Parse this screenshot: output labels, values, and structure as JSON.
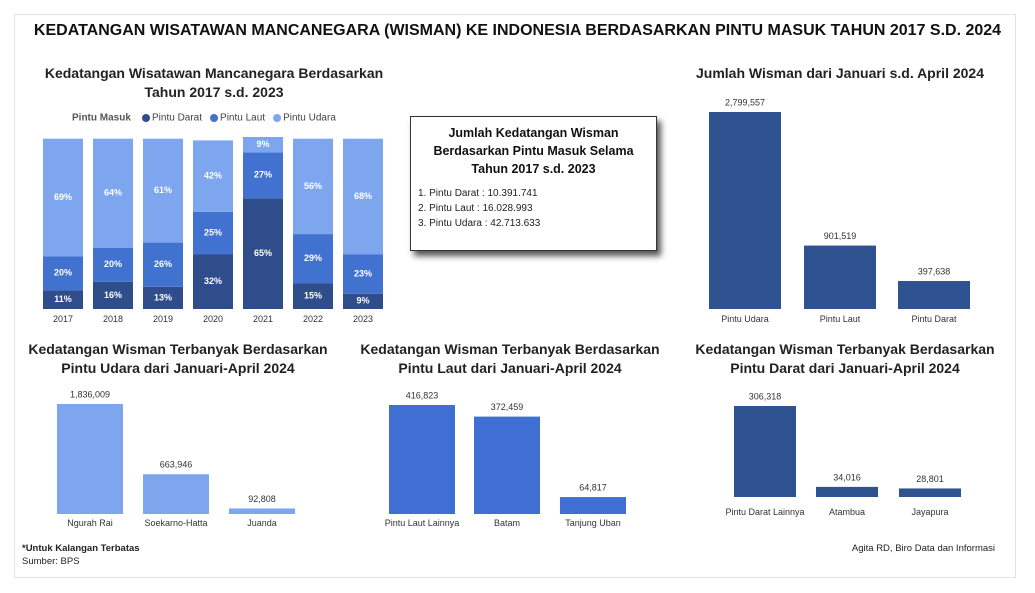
{
  "header": {
    "title": "KEDATANGAN WISATAWAN MANCANEGARA (WISMAN) KE INDONESIA BERDASARKAN PINTU MASUK TAHUN 2017 S.D. 2024"
  },
  "chart_data": [
    {
      "type": "bar",
      "stacked": true,
      "title": "Kedatangan Wisatawan Mancanegara Berdasarkan Tahun 2017 s.d. 2023",
      "legend_title": "Pintu Masuk",
      "categories": [
        "2017",
        "2018",
        "2019",
        "2020",
        "2021",
        "2022",
        "2023"
      ],
      "series": [
        {
          "name": "Pintu Darat",
          "color": "#2f4d8a",
          "values": [
            11,
            16,
            13,
            32,
            65,
            15,
            9
          ],
          "value_labels": [
            "11%",
            "16%",
            "13%",
            "32%",
            "65%",
            "15%",
            "9%"
          ]
        },
        {
          "name": "Pintu Laut",
          "color": "#4272cf",
          "values": [
            20,
            20,
            26,
            25,
            27,
            29,
            23
          ],
          "value_labels": [
            "20%",
            "20%",
            "26%",
            "25%",
            "27%",
            "29%",
            "23%"
          ]
        },
        {
          "name": "Pintu Udara",
          "color": "#7ea6ef",
          "values": [
            69,
            64,
            61,
            42,
            9,
            56,
            68
          ],
          "value_labels": [
            "69%",
            "64%",
            "61%",
            "42%",
            "9%",
            "56%",
            "68%"
          ]
        }
      ]
    },
    {
      "type": "bar",
      "title": "Jumlah Wisman dari Januari s.d. April 2024",
      "color": "#2f5290",
      "categories": [
        "Pintu Udara",
        "Pintu Laut",
        "Pintu Darat"
      ],
      "values": [
        2799557,
        901519,
        397638
      ],
      "value_labels": [
        "2,799,557",
        "901,519",
        "397,638"
      ]
    },
    {
      "type": "bar",
      "title": "Kedatangan Wisman Terbanyak Berdasarkan Pintu Udara dari Januari-April 2024",
      "color": "#7ea6ef",
      "categories": [
        "Ngurah Rai",
        "Soekarno-Hatta",
        "Juanda"
      ],
      "values": [
        1836009,
        663946,
        92808
      ],
      "value_labels": [
        "1,836,009",
        "663,946",
        "92,808"
      ]
    },
    {
      "type": "bar",
      "title": "Kedatangan Wisman Terbanyak Berdasarkan Pintu Laut dari Januari-April 2024",
      "color": "#3f6fd3",
      "categories": [
        "Pintu Laut Lainnya",
        "Batam",
        "Tanjung Uban"
      ],
      "values": [
        416823,
        372459,
        64817
      ],
      "value_labels": [
        "416,823",
        "372,459",
        "64,817"
      ]
    },
    {
      "type": "bar",
      "title": "Kedatangan Wisman Terbanyak Berdasarkan Pintu Darat dari Januari-April 2024",
      "color": "#2f5290",
      "categories": [
        "Pintu Darat Lainnya",
        "Atambua",
        "Jayapura"
      ],
      "values": [
        306318,
        34016,
        28801
      ],
      "value_labels": [
        "306,318",
        "34,016",
        "28,801"
      ]
    }
  ],
  "info_box": {
    "title": "Jumlah Kedatangan Wisman Berdasarkan Pintu Masuk Selama Tahun 2017 s.d. 2023",
    "items": [
      "1. Pintu Darat : 10.391.741",
      "2. Pintu Laut : 16.028.993",
      "3. Pintu Udara : 42.713.633"
    ]
  },
  "footer": {
    "note": "*Untuk Kalangan Terbatas",
    "source": "Sumber: BPS",
    "credit": "Agita RD, Biro Data dan Informasi"
  }
}
